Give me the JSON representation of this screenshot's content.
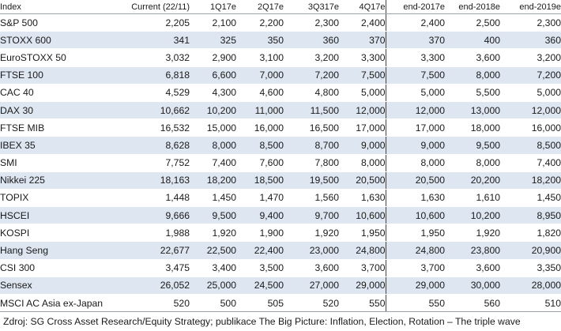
{
  "table": {
    "headers": [
      "Index",
      "Current (22/11)",
      "1Q17e",
      "2Q17e",
      "3Q317e",
      "4Q17e",
      "end-2017e",
      "end-2018e",
      "end-2019e"
    ],
    "rows": [
      [
        "S&P 500",
        "2,205",
        "2,100",
        "2,200",
        "2,300",
        "2,400",
        "2,400",
        "2,500",
        "2,300"
      ],
      [
        "STOXX 600",
        "341",
        "325",
        "350",
        "360",
        "370",
        "370",
        "400",
        "360"
      ],
      [
        "EuroSTOXX 50",
        "3,032",
        "2,900",
        "3,100",
        "3,200",
        "3,300",
        "3,300",
        "3,600",
        "3,200"
      ],
      [
        "FTSE 100",
        "6,818",
        "6,600",
        "7,000",
        "7,200",
        "7,500",
        "7,500",
        "8,000",
        "7,200"
      ],
      [
        "CAC 40",
        "4,529",
        "4,300",
        "4,600",
        "4,800",
        "5,000",
        "5,000",
        "5,500",
        "5,000"
      ],
      [
        "DAX 30",
        "10,662",
        "10,200",
        "11,000",
        "11,500",
        "12,000",
        "12,000",
        "13,000",
        "12,000"
      ],
      [
        "FTSE MIB",
        "16,532",
        "15,000",
        "16,000",
        "16,500",
        "17,000",
        "17,000",
        "18,000",
        "16,000"
      ],
      [
        "IBEX 35",
        "8,628",
        "8,000",
        "8,500",
        "8,700",
        "9,000",
        "9,000",
        "9,500",
        "8,500"
      ],
      [
        "SMI",
        "7,752",
        "7,400",
        "7,600",
        "7,800",
        "8,000",
        "8,000",
        "8,000",
        "7,400"
      ],
      [
        "Nikkei 225",
        "18,163",
        "18,200",
        "18,500",
        "19,500",
        "20,500",
        "20,500",
        "20,200",
        "18,200"
      ],
      [
        "TOPIX",
        "1,448",
        "1,450",
        "1,470",
        "1,560",
        "1,630",
        "1,630",
        "1,610",
        "1,450"
      ],
      [
        "HSCEI",
        "9,666",
        "9,500",
        "9,400",
        "9,700",
        "10,600",
        "10,600",
        "10,200",
        "8,950"
      ],
      [
        "KOSPI",
        "1,988",
        "1,920",
        "1,900",
        "1,920",
        "1,950",
        "1,950",
        "1,920",
        "1,820"
      ],
      [
        "Hang Seng",
        "22,677",
        "22,500",
        "22,400",
        "23,000",
        "24,800",
        "24,800",
        "23,800",
        "20,900"
      ],
      [
        "CSI 300",
        "3,475",
        "3,400",
        "3,500",
        "3,600",
        "3,700",
        "3,700",
        "3,600",
        "3,350"
      ],
      [
        "Sensex",
        "26,052",
        "25,000",
        "24,500",
        "27,000",
        "29,000",
        "29,000",
        "30,000",
        "28,000"
      ],
      [
        "MSCI AC Asia ex-Japan",
        "520",
        "500",
        "505",
        "520",
        "550",
        "550",
        "560",
        "510"
      ]
    ]
  },
  "source": "Zdroj: SG Cross Asset Research/Equity Strategy; publikace The Big Picture: Inflation, Election, Rotation – The triple wave",
  "colors": {
    "row_shade": "#dde6f1",
    "separator": "#444444"
  }
}
